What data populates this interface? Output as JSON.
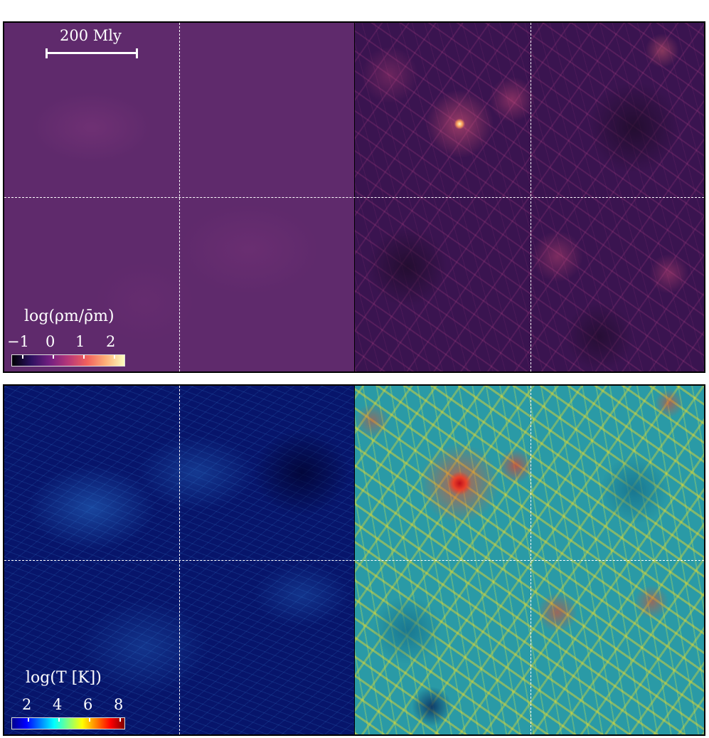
{
  "figure": {
    "scale_bar": {
      "label": "200 Mly"
    },
    "density_colorbar": {
      "title": "log(ρm/ρ̄m)",
      "ticks": [
        "−1",
        "0",
        "1",
        "2"
      ],
      "colormap": "magma"
    },
    "temperature_colorbar": {
      "title": "log(T [K])",
      "ticks": [
        "2",
        "4",
        "6",
        "8"
      ],
      "colormap": "jet"
    },
    "colors": {
      "density_background": "#5f2a6c",
      "density_web": "#3a1450",
      "temperature_background": "#07156b",
      "temperature_web": "#2a9aa6",
      "dashed_lines": "#ffffff"
    }
  }
}
